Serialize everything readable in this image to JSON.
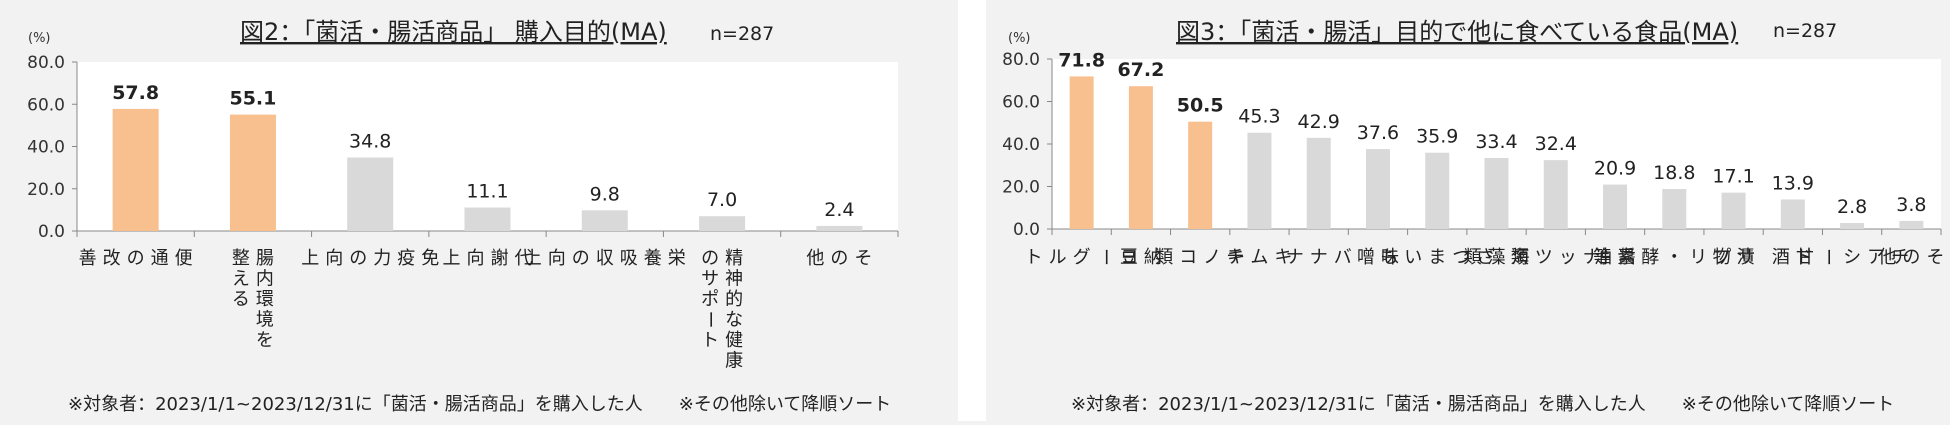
{
  "colors": {
    "highlight": "#f8c08f",
    "normal": "#d9d9d9",
    "plot_bg": "#ffffff",
    "axis": "#888888"
  },
  "chart_data": [
    {
      "type": "bar",
      "title": "図2：「菌活・腸活商品」 購入目的(MA)",
      "n_label": "n=287",
      "unit": "(%)",
      "yticks": [
        "0.0",
        "20.0",
        "40.0",
        "60.0",
        "80.0"
      ],
      "ylim": [
        0,
        80
      ],
      "categories": [
        "便通の改善",
        "腸内環境を整える",
        "免疫力の向上",
        "代謝向上",
        "栄養吸収の向上",
        "精神的な健康のサポート",
        "その他"
      ],
      "category_lines": [
        [
          "便",
          "通",
          "の",
          "改",
          "善"
        ],
        [
          "腸内環境を",
          "整える"
        ],
        [
          "免",
          "疫",
          "力",
          "の",
          "向",
          "上"
        ],
        [
          "代",
          "謝",
          "向",
          "上"
        ],
        [
          "栄",
          "養",
          "吸",
          "収",
          "の",
          "向",
          "上"
        ],
        [
          "精神的な健康",
          "のサポート"
        ],
        [
          "そ",
          "の",
          "他"
        ]
      ],
      "values": [
        57.8,
        55.1,
        34.8,
        11.1,
        9.8,
        7.0,
        2.4
      ],
      "value_labels": [
        "57.8",
        "55.1",
        "34.8",
        "11.1",
        "9.8",
        "7.0",
        "2.4"
      ],
      "highlight": [
        true,
        true,
        false,
        false,
        false,
        false,
        false
      ],
      "footnote": "※対象者：2023/1/1~2023/12/31に「菌活・腸活商品」を購入した人　　※その他除いて降順ソート",
      "grid": false
    },
    {
      "type": "bar",
      "title": "図3：「菌活・腸活」目的で他に食べている食品(MA)",
      "n_label": "n=287",
      "unit": "(%)",
      "yticks": [
        "0.0",
        "20.0",
        "40.0",
        "60.0",
        "80.0"
      ],
      "ylim": [
        0,
        80
      ],
      "categories": [
        "ヨーグルト",
        "納豆",
        "キノコ類",
        "キムチ",
        "バナナ",
        "味噌",
        "さつまいも",
        "海藻類",
        "ナッツ類",
        "醤油",
        "サプリ・酵素等",
        "漬物",
        "甘酒",
        "チアシード",
        "その他"
      ],
      "category_lines": [
        [
          "ヨ",
          "ー",
          "グ",
          "ル",
          "ト"
        ],
        [
          "納",
          "豆"
        ],
        [
          "キ",
          "ノ",
          "コ",
          "類"
        ],
        [
          "キ",
          "ム",
          "チ"
        ],
        [
          "バ",
          "ナ",
          "ナ"
        ],
        [
          "味",
          "噌"
        ],
        [
          "さ",
          "つ",
          "ま",
          "い",
          "も"
        ],
        [
          "海",
          "藻",
          "類"
        ],
        [
          "ナ",
          "ッ",
          "ツ",
          "類"
        ],
        [
          "醤",
          "油"
        ],
        [
          "サ",
          "プ",
          "リ",
          "・",
          "酵",
          "素",
          "等"
        ],
        [
          "漬",
          "物"
        ],
        [
          "甘",
          "酒"
        ],
        [
          "チ",
          "ア",
          "シ",
          "ー",
          "ド"
        ],
        [
          "そ",
          "の",
          "他"
        ]
      ],
      "values": [
        71.8,
        67.2,
        50.5,
        45.3,
        42.9,
        37.6,
        35.9,
        33.4,
        32.4,
        20.9,
        18.8,
        17.1,
        13.9,
        2.8,
        3.8
      ],
      "value_labels": [
        "71.8",
        "67.2",
        "50.5",
        "45.3",
        "42.9",
        "37.6",
        "35.9",
        "33.4",
        "32.4",
        "20.9",
        "18.8",
        "17.1",
        "13.9",
        "2.8",
        "3.8"
      ],
      "highlight": [
        true,
        true,
        true,
        false,
        false,
        false,
        false,
        false,
        false,
        false,
        false,
        false,
        false,
        false,
        false
      ],
      "footnote": "※対象者：2023/1/1~2023/12/31に「菌活・腸活商品」を購入した人　　※その他除いて降順ソート",
      "grid": false
    }
  ]
}
